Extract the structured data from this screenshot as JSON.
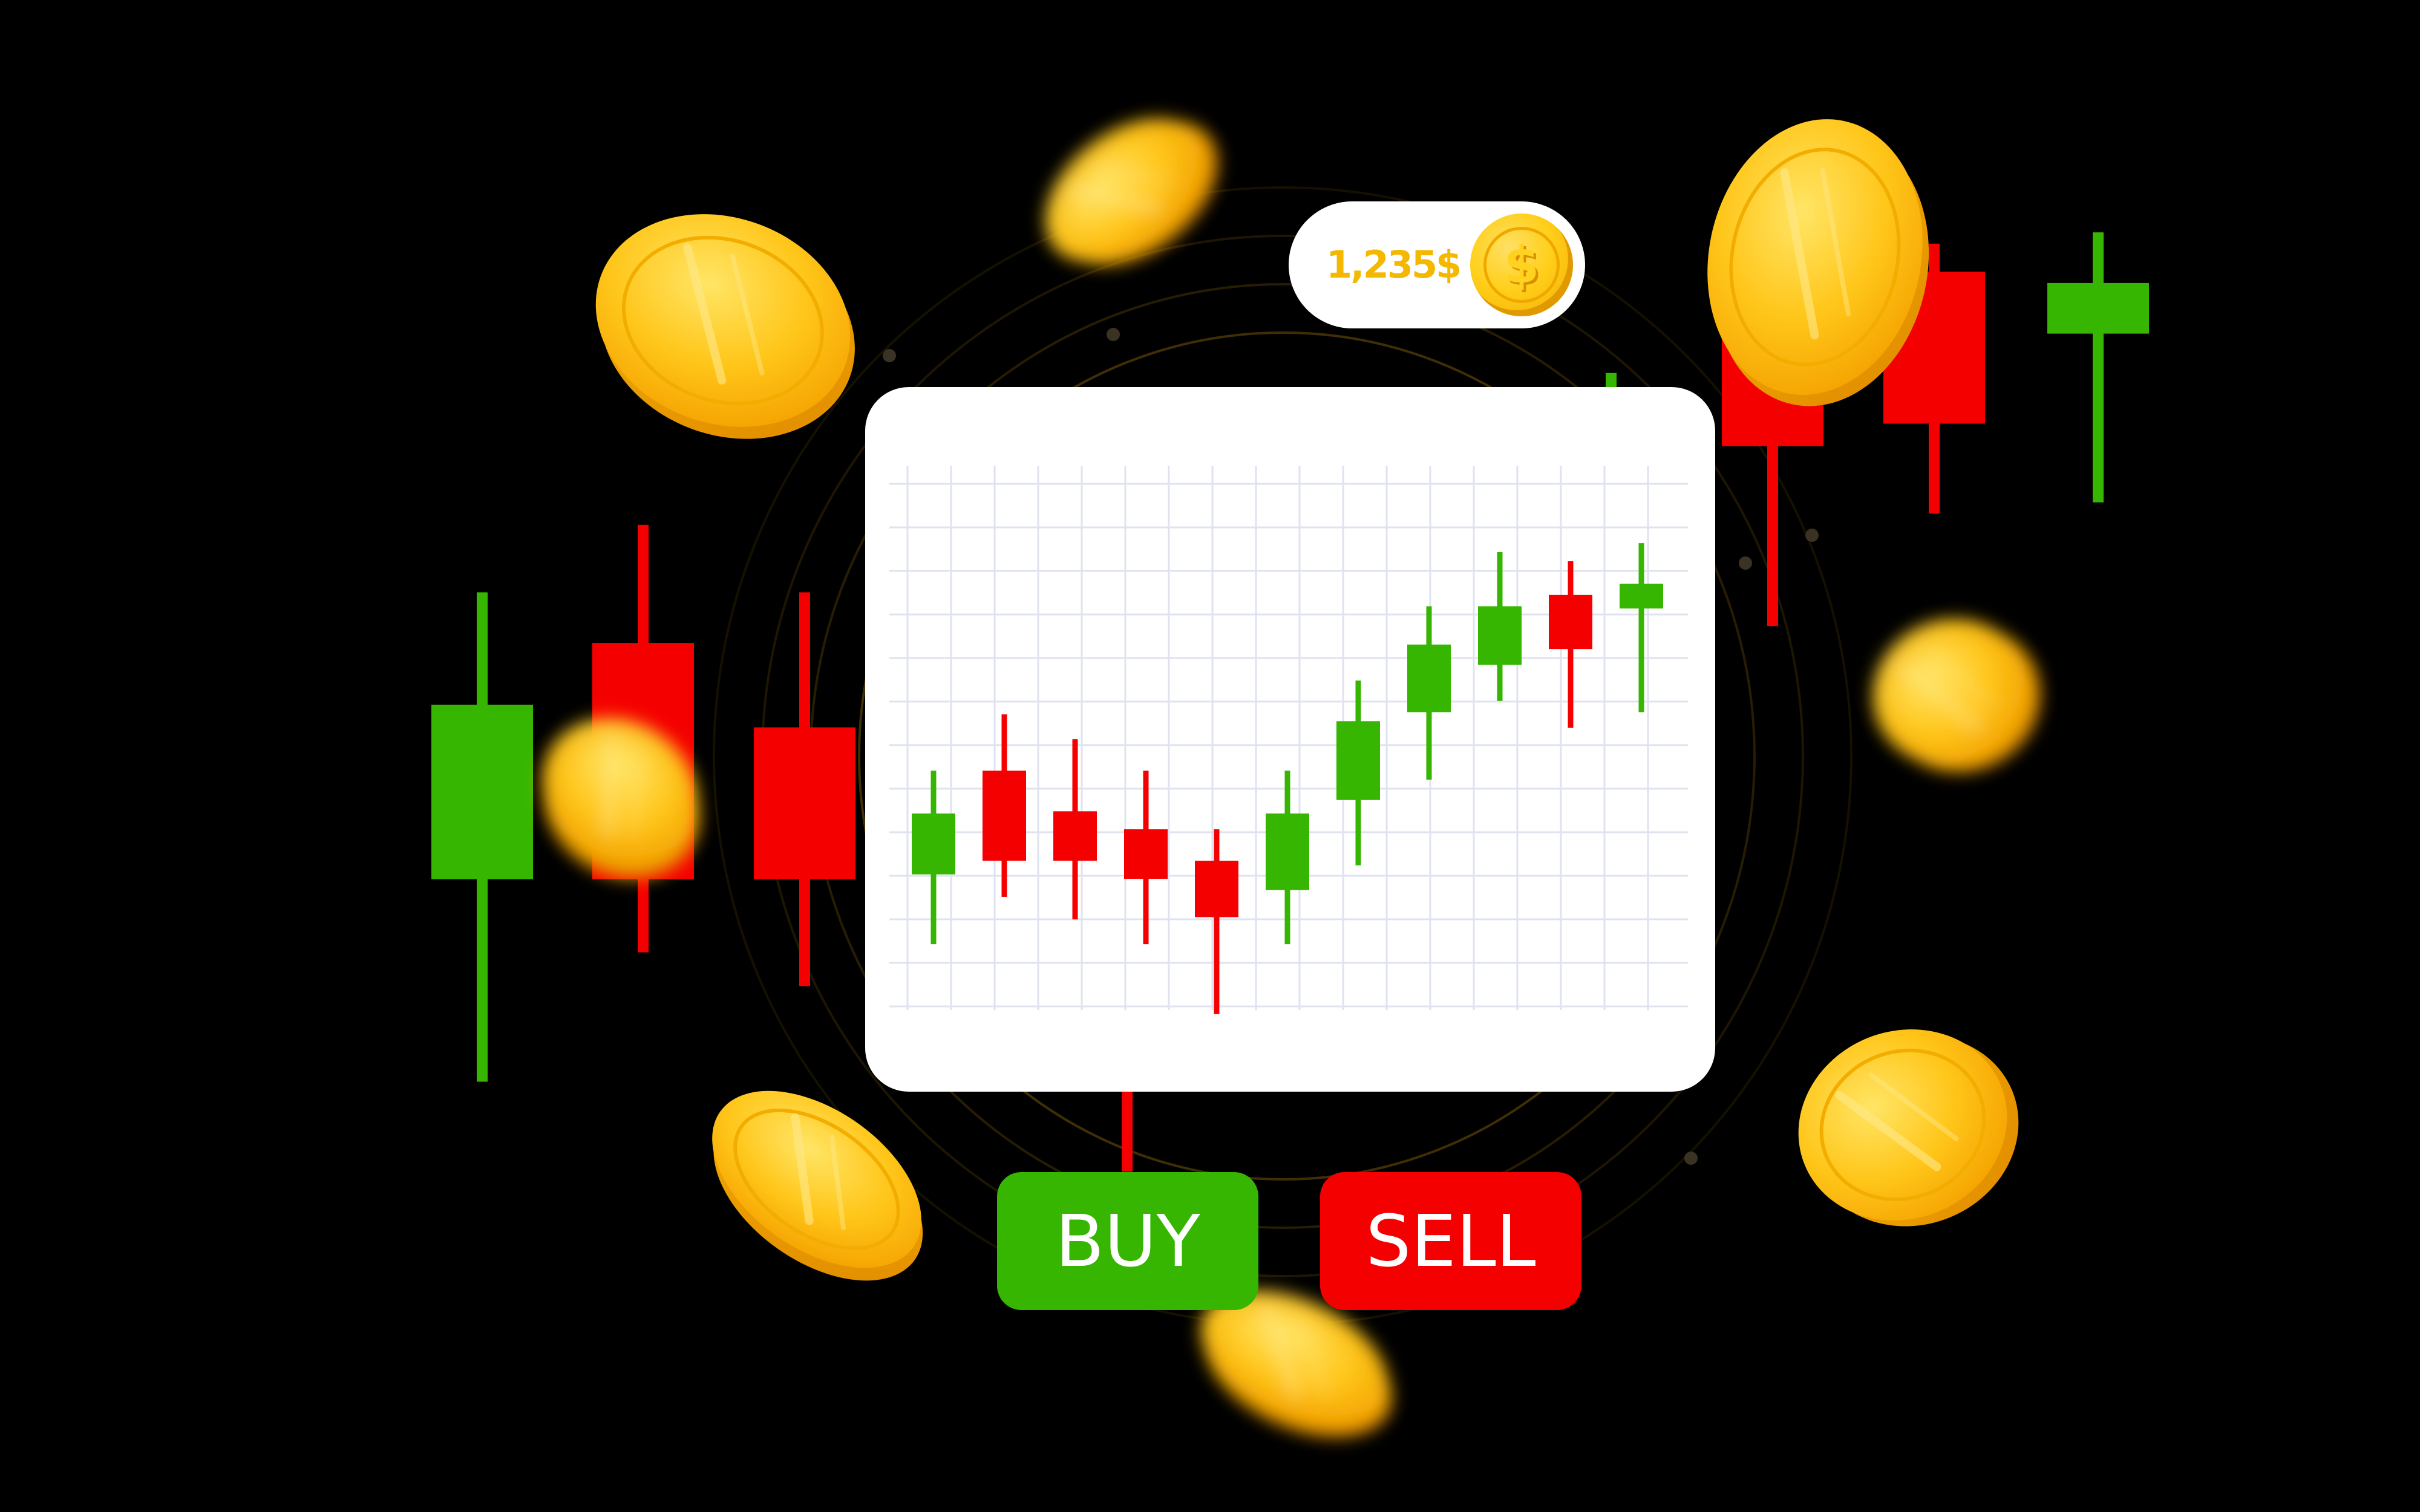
{
  "balance": {
    "amount": "1,235$",
    "coin_symbol": "$",
    "coin_icon": "dollar-coin-icon"
  },
  "actions": {
    "buy_label": "BUY",
    "sell_label": "SELL"
  },
  "colors": {
    "background": "#000000",
    "bullish": "#36b600",
    "bearish": "#f40000",
    "coin": "#ffc61a",
    "panel": "#ffffff",
    "grid": "#dfe3ef"
  },
  "chart_data": {
    "type": "candlestick",
    "title": "",
    "xlabel": "",
    "ylabel": "",
    "grid": true,
    "ylim": [
      0,
      100
    ],
    "candles": [
      {
        "open": 28.5,
        "close": 42.0,
        "high": 51.5,
        "low": 13.0
      },
      {
        "open": 51.5,
        "close": 31.5,
        "high": 64.0,
        "low": 23.5
      },
      {
        "open": 42.5,
        "close": 31.5,
        "high": 58.5,
        "low": 18.5
      },
      {
        "open": 38.5,
        "close": 27.5,
        "high": 51.5,
        "low": 13.0
      },
      {
        "open": 31.5,
        "close": 19.0,
        "high": 38.5,
        "low": -2.5
      },
      {
        "open": 25.0,
        "close": 42.0,
        "high": 51.5,
        "low": 13.0
      },
      {
        "open": 45.0,
        "close": 62.5,
        "high": 71.5,
        "low": 30.5
      },
      {
        "open": 64.5,
        "close": 79.5,
        "high": 88.0,
        "low": 49.5
      },
      {
        "open": 75.0,
        "close": 88.0,
        "high": 100.0,
        "low": 67.0
      },
      {
        "open": 90.5,
        "close": 78.5,
        "high": 98.0,
        "low": 61.0
      },
      {
        "open": 87.5,
        "close": 93.0,
        "high": 102.0,
        "low": 64.5
      }
    ]
  },
  "background_candles": [
    {
      "open": 31,
      "close": 62,
      "high": 82,
      "low": -5
    },
    {
      "open": 73,
      "close": 31,
      "high": 94,
      "low": 18
    },
    {
      "open": 58,
      "close": 31,
      "high": 82,
      "low": 12
    },
    {
      "open": 37,
      "close": 20,
      "high": 44,
      "low": -3
    },
    {
      "open": 21,
      "close": 5,
      "high": 32,
      "low": -21
    },
    {
      "open": 5,
      "close": 26,
      "high": 33,
      "low": 3
    },
    {
      "open": 84,
      "close": 106,
      "high": 121,
      "low": 70
    },
    {
      "open": 128,
      "close": 108,
      "high": 136,
      "low": 76
    },
    {
      "open": 139,
      "close": 112,
      "high": 144,
      "low": 96
    },
    {
      "open": 128,
      "close": 137,
      "high": 146,
      "low": 98
    }
  ]
}
